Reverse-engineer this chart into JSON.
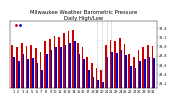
{
  "title": "Milwaukee Weather Barometric Pressure",
  "subtitle": "Daily High/Low",
  "high_values": [
    30.04,
    29.98,
    30.08,
    30.01,
    30.03,
    29.96,
    29.88,
    30.11,
    30.15,
    30.23,
    30.21,
    30.28,
    30.33,
    30.35,
    30.08,
    29.98,
    29.78,
    29.63,
    29.53,
    29.48,
    30.03,
    30.13,
    30.11,
    30.18,
    30.05,
    29.83,
    29.78,
    29.93,
    29.98,
    30.03,
    30.01
  ],
  "low_values": [
    29.78,
    29.68,
    29.83,
    29.73,
    29.75,
    29.63,
    29.48,
    29.83,
    29.93,
    29.98,
    29.98,
    30.03,
    30.08,
    30.11,
    29.83,
    29.73,
    29.48,
    29.33,
    29.28,
    29.23,
    29.78,
    29.88,
    29.85,
    29.93,
    29.81,
    29.58,
    29.53,
    29.68,
    29.73,
    29.78,
    29.75
  ],
  "high_color": "#cc0000",
  "low_color": "#0000cc",
  "ylim_min": 29.1,
  "ylim_max": 30.55,
  "ytick_values": [
    29.2,
    29.4,
    29.6,
    29.8,
    30.0,
    30.2,
    30.4
  ],
  "ytick_labels": [
    "29.2",
    "29.4",
    "29.6",
    "29.8",
    "30.0",
    "30.2",
    "30.4"
  ],
  "background_color": "#ffffff",
  "dashed_line_indices": [
    18,
    19,
    20,
    21
  ],
  "title_fontsize": 3.8,
  "tick_fontsize": 2.5,
  "bar_width": 0.38,
  "baseline": 29.1,
  "n_days": 31
}
